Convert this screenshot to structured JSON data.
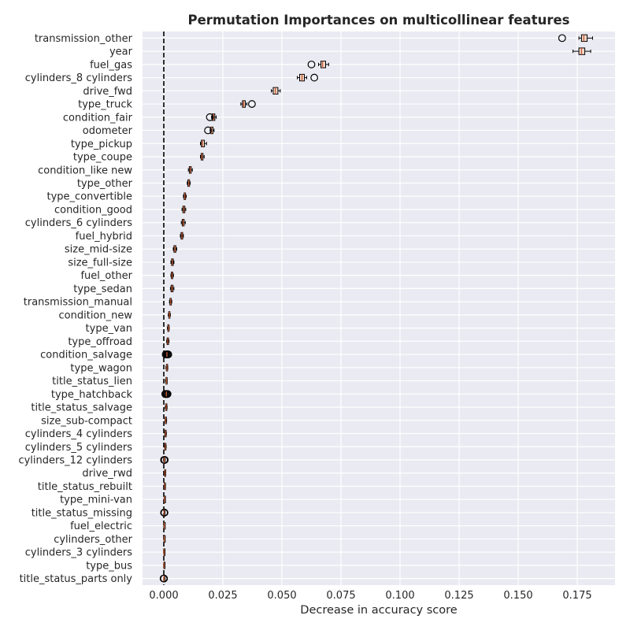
{
  "chart_data": {
    "type": "boxplot",
    "title": "Permutation Importances on multicollinear features",
    "xlabel": "Decrease in accuracy score",
    "xlim": [
      -0.009,
      0.191
    ],
    "xticks": [
      "0.000",
      "0.025",
      "0.050",
      "0.075",
      "0.100",
      "0.125",
      "0.150",
      "0.175"
    ],
    "grid": true,
    "reference_line": {
      "x": 0.0,
      "style": "dashed"
    },
    "colors": {
      "background": "#eaeaf2",
      "grid": "#ffffff",
      "box_face": "#f2d7c8",
      "median": "#c4572f",
      "edge": "#000000",
      "text": "#262626"
    },
    "features": [
      {
        "name": "transmission_other",
        "q1": 0.1768,
        "median": 0.1778,
        "q3": 0.1792,
        "wl": 0.1757,
        "wh": 0.1815,
        "outliers": [
          0.1686
        ]
      },
      {
        "name": "year",
        "q1": 0.1757,
        "median": 0.1768,
        "q3": 0.1782,
        "wl": 0.1732,
        "wh": 0.1807,
        "outliers": []
      },
      {
        "name": "fuel_gas",
        "q1": 0.0665,
        "median": 0.0672,
        "q3": 0.0685,
        "wl": 0.0655,
        "wh": 0.0698,
        "outliers": [
          0.0625
        ]
      },
      {
        "name": "cylinders_8 cylinders",
        "q1": 0.0575,
        "median": 0.0585,
        "q3": 0.0595,
        "wl": 0.0565,
        "wh": 0.0605,
        "outliers": [
          0.0637
        ]
      },
      {
        "name": "drive_fwd",
        "q1": 0.0463,
        "median": 0.0472,
        "q3": 0.0483,
        "wl": 0.0455,
        "wh": 0.0493,
        "outliers": []
      },
      {
        "name": "type_truck",
        "q1": 0.0333,
        "median": 0.0338,
        "q3": 0.0345,
        "wl": 0.0326,
        "wh": 0.0352,
        "outliers": [
          0.0373
        ]
      },
      {
        "name": "condition_fair",
        "q1": 0.0205,
        "median": 0.0211,
        "q3": 0.0216,
        "wl": 0.0202,
        "wh": 0.0222,
        "outliers": [
          0.0195
        ]
      },
      {
        "name": "odometer",
        "q1": 0.0199,
        "median": 0.0202,
        "q3": 0.0208,
        "wl": 0.0196,
        "wh": 0.0213,
        "outliers": [
          0.0187
        ]
      },
      {
        "name": "type_pickup",
        "q1": 0.0159,
        "median": 0.0164,
        "q3": 0.0172,
        "wl": 0.0155,
        "wh": 0.0181,
        "outliers": []
      },
      {
        "name": "type_coupe",
        "q1": 0.0158,
        "median": 0.0161,
        "q3": 0.0166,
        "wl": 0.0155,
        "wh": 0.0171,
        "outliers": []
      },
      {
        "name": "condition_like new",
        "q1": 0.0108,
        "median": 0.0112,
        "q3": 0.0116,
        "wl": 0.0104,
        "wh": 0.0121,
        "outliers": []
      },
      {
        "name": "type_other",
        "q1": 0.0102,
        "median": 0.0106,
        "q3": 0.0109,
        "wl": 0.0099,
        "wh": 0.0112,
        "outliers": []
      },
      {
        "name": "type_convertible",
        "q1": 0.0086,
        "median": 0.0089,
        "q3": 0.0092,
        "wl": 0.0083,
        "wh": 0.0095,
        "outliers": []
      },
      {
        "name": "condition_good",
        "q1": 0.0081,
        "median": 0.0085,
        "q3": 0.0089,
        "wl": 0.0077,
        "wh": 0.0093,
        "outliers": []
      },
      {
        "name": "cylinders_6 cylinders",
        "q1": 0.0078,
        "median": 0.0082,
        "q3": 0.0086,
        "wl": 0.0074,
        "wh": 0.0091,
        "outliers": []
      },
      {
        "name": "fuel_hybrid",
        "q1": 0.0073,
        "median": 0.0077,
        "q3": 0.008,
        "wl": 0.007,
        "wh": 0.0083,
        "outliers": []
      },
      {
        "name": "size_mid-size",
        "q1": 0.0043,
        "median": 0.0047,
        "q3": 0.0051,
        "wl": 0.004,
        "wh": 0.0055,
        "outliers": []
      },
      {
        "name": "size_full-size",
        "q1": 0.0033,
        "median": 0.0036,
        "q3": 0.004,
        "wl": 0.003,
        "wh": 0.0043,
        "outliers": []
      },
      {
        "name": "fuel_other",
        "q1": 0.0032,
        "median": 0.0035,
        "q3": 0.0038,
        "wl": 0.003,
        "wh": 0.0041,
        "outliers": []
      },
      {
        "name": "type_sedan",
        "q1": 0.0031,
        "median": 0.0035,
        "q3": 0.0039,
        "wl": 0.0028,
        "wh": 0.0043,
        "outliers": []
      },
      {
        "name": "transmission_manual",
        "q1": 0.0026,
        "median": 0.0029,
        "q3": 0.0032,
        "wl": 0.0024,
        "wh": 0.0034,
        "outliers": []
      },
      {
        "name": "condition_new",
        "q1": 0.0021,
        "median": 0.0024,
        "q3": 0.0026,
        "wl": 0.0019,
        "wh": 0.0028,
        "outliers": []
      },
      {
        "name": "type_van",
        "q1": 0.0017,
        "median": 0.0019,
        "q3": 0.0021,
        "wl": 0.0015,
        "wh": 0.0023,
        "outliers": []
      },
      {
        "name": "type_offroad",
        "q1": 0.0014,
        "median": 0.0017,
        "q3": 0.002,
        "wl": 0.0012,
        "wh": 0.0022,
        "outliers": []
      },
      {
        "name": "condition_salvage",
        "q1": 0.001,
        "median": 0.0013,
        "q3": 0.0017,
        "wl": 0.0008,
        "wh": 0.0019,
        "outliers": [
          0.0008,
          0.0012,
          0.0016,
          0.0019
        ]
      },
      {
        "name": "type_wagon",
        "q1": 0.0011,
        "median": 0.0013,
        "q3": 0.0015,
        "wl": 0.0009,
        "wh": 0.0017,
        "outliers": []
      },
      {
        "name": "title_status_lien",
        "q1": 0.0009,
        "median": 0.0011,
        "q3": 0.0013,
        "wl": 0.0007,
        "wh": 0.0014,
        "outliers": []
      },
      {
        "name": "type_hatchback",
        "q1": 0.0008,
        "median": 0.0011,
        "q3": 0.0014,
        "wl": 0.0006,
        "wh": 0.0016,
        "outliers": [
          0.0006,
          0.0009,
          0.0013,
          0.0016
        ]
      },
      {
        "name": "title_status_salvage",
        "q1": 0.0008,
        "median": 0.001,
        "q3": 0.0012,
        "wl": 0.0006,
        "wh": 0.0014,
        "outliers": []
      },
      {
        "name": "size_sub-compact",
        "q1": 0.0006,
        "median": 0.0008,
        "q3": 0.001,
        "wl": 0.0005,
        "wh": 0.0012,
        "outliers": []
      },
      {
        "name": "cylinders_4 cylinders",
        "q1": 0.0005,
        "median": 0.0007,
        "q3": 0.0009,
        "wl": 0.0004,
        "wh": 0.0011,
        "outliers": []
      },
      {
        "name": "cylinders_5 cylinders",
        "q1": 0.0004,
        "median": 0.0006,
        "q3": 0.0008,
        "wl": 0.0003,
        "wh": 0.001,
        "outliers": []
      },
      {
        "name": "cylinders_12 cylinders",
        "q1": 0.0001,
        "median": 0.0002,
        "q3": 0.0004,
        "wl": 0.0,
        "wh": 0.0005,
        "outliers": [
          0.0001,
          0.0004
        ]
      },
      {
        "name": "drive_rwd",
        "q1": 0.0003,
        "median": 0.0005,
        "q3": 0.0007,
        "wl": 0.0002,
        "wh": 0.0008,
        "outliers": []
      },
      {
        "name": "title_status_rebuilt",
        "q1": 0.0002,
        "median": 0.0004,
        "q3": 0.0006,
        "wl": 0.0001,
        "wh": 0.0007,
        "outliers": []
      },
      {
        "name": "type_mini-van",
        "q1": 0.0002,
        "median": 0.0003,
        "q3": 0.0005,
        "wl": 0.0001,
        "wh": 0.0006,
        "outliers": []
      },
      {
        "name": "title_status_missing",
        "q1": 0.0,
        "median": 0.0001,
        "q3": 0.0003,
        "wl": 0.0,
        "wh": 0.0004,
        "outliers": [
          0.0001,
          0.0003
        ]
      },
      {
        "name": "fuel_electric",
        "q1": 0.0001,
        "median": 0.0002,
        "q3": 0.0004,
        "wl": 0.0,
        "wh": 0.0005,
        "outliers": []
      },
      {
        "name": "cylinders_other",
        "q1": 0.0001,
        "median": 0.0002,
        "q3": 0.0003,
        "wl": 0.0,
        "wh": 0.0004,
        "outliers": []
      },
      {
        "name": "cylinders_3 cylinders",
        "q1": 0.0,
        "median": 0.0001,
        "q3": 0.0003,
        "wl": 0.0,
        "wh": 0.0004,
        "outliers": []
      },
      {
        "name": "type_bus",
        "q1": 0.0,
        "median": 0.0001,
        "q3": 0.0002,
        "wl": 0.0,
        "wh": 0.0003,
        "outliers": []
      },
      {
        "name": "title_status_parts only",
        "q1": 0.0,
        "median": 0.0,
        "q3": 0.0001,
        "wl": 0.0,
        "wh": 0.0002,
        "outliers": [
          -0.0001,
          0.0001
        ]
      }
    ]
  }
}
